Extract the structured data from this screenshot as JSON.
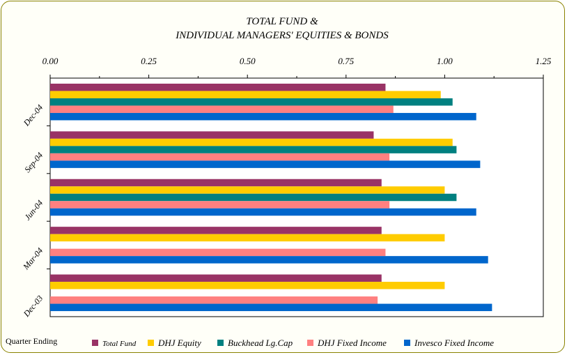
{
  "chart_data": {
    "type": "bar",
    "orientation": "horizontal",
    "title_lines": [
      "TOTAL FUND &",
      "INDIVIDUAL MANAGERS' EQUITIES & BONDS"
    ],
    "xlim": [
      0,
      1.25
    ],
    "x_ticks": [
      "0.00",
      "0.25",
      "0.50",
      "0.75",
      "1.00",
      "1.25"
    ],
    "categories": [
      "Dec-04",
      "Sep-04",
      "Jun-04",
      "Mar-04",
      "Dec-03"
    ],
    "footer_label": "Quarter Ending",
    "legend_position": "bottom",
    "series": [
      {
        "name": "Total Fund",
        "color": "#993366",
        "values": [
          0.85,
          0.82,
          0.84,
          0.84,
          0.84
        ]
      },
      {
        "name": "DHJ Equity",
        "color": "#ffcc00",
        "values": [
          0.99,
          1.02,
          1.0,
          1.0,
          1.0
        ]
      },
      {
        "name": "Buckhead Lg.Cap",
        "color": "#008080",
        "values": [
          1.02,
          1.03,
          1.03,
          null,
          null
        ]
      },
      {
        "name": "DHJ Fixed Income",
        "color": "#ff8080",
        "values": [
          0.87,
          0.86,
          0.86,
          0.85,
          0.83
        ]
      },
      {
        "name": "Invesco Fixed Income",
        "color": "#0066cc",
        "values": [
          1.08,
          1.09,
          1.08,
          1.11,
          1.12
        ]
      }
    ]
  }
}
